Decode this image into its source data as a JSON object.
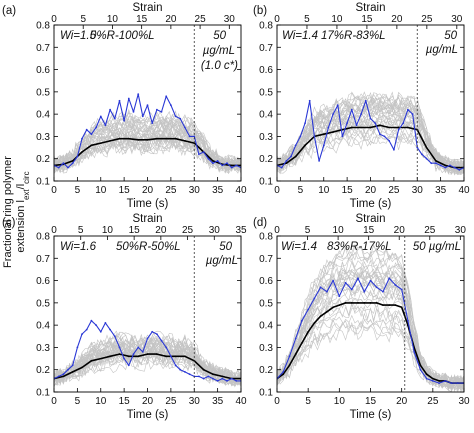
{
  "figure": {
    "ylabel_line1": "Fractional ring polymer",
    "ylabel_line2": "extension l",
    "ylabel_sub1": "ext",
    "ylabel_slash": "/l",
    "ylabel_sub2": "circ"
  },
  "chart_data": [
    {
      "type": "line",
      "panel_label": "(a)",
      "xlabel": "Time (s)",
      "x2label": "Strain",
      "xlim": [
        0,
        40
      ],
      "ylim": [
        0.1,
        0.8
      ],
      "xticks": [
        0,
        5,
        10,
        15,
        20,
        25,
        30,
        35,
        40
      ],
      "yticks": [
        0.1,
        0.2,
        0.3,
        0.4,
        0.5,
        0.6,
        0.7,
        0.8
      ],
      "x2ticks": [
        0,
        5,
        10,
        15,
        20,
        25,
        30
      ],
      "x2_per_time": 0.8,
      "vline": 30,
      "annotations": [
        "Wi=1.5",
        "0%R-100%L",
        "50",
        "µg/mL",
        "(1.0 c*)"
      ],
      "series": [
        {
          "role": "average",
          "color": "#000000",
          "x": [
            0,
            2,
            4,
            6,
            8,
            10,
            12,
            14,
            16,
            18,
            20,
            22,
            24,
            26,
            28,
            30,
            32,
            34,
            36,
            38,
            40
          ],
          "values": [
            0.17,
            0.175,
            0.19,
            0.23,
            0.26,
            0.27,
            0.28,
            0.29,
            0.29,
            0.285,
            0.285,
            0.29,
            0.29,
            0.29,
            0.28,
            0.27,
            0.23,
            0.19,
            0.175,
            0.17,
            0.17
          ]
        },
        {
          "role": "single molecule",
          "color": "#2a38d6",
          "x": [
            0,
            1,
            2,
            3,
            4,
            5,
            6,
            7,
            8,
            9,
            10,
            11,
            12,
            13,
            14,
            15,
            16,
            17,
            18,
            19,
            20,
            21,
            22,
            23,
            24,
            25,
            26,
            27,
            28,
            29,
            30,
            31,
            32,
            33,
            34,
            35,
            36,
            37,
            38,
            39,
            40
          ],
          "values": [
            0.17,
            0.16,
            0.18,
            0.16,
            0.18,
            0.21,
            0.29,
            0.33,
            0.31,
            0.34,
            0.39,
            0.35,
            0.42,
            0.38,
            0.46,
            0.37,
            0.47,
            0.41,
            0.49,
            0.39,
            0.44,
            0.36,
            0.42,
            0.41,
            0.48,
            0.44,
            0.39,
            0.38,
            0.34,
            0.3,
            0.3,
            0.22,
            0.23,
            0.2,
            0.18,
            0.19,
            0.17,
            0.18,
            0.16,
            0.17,
            0.16
          ]
        }
      ]
    },
    {
      "type": "line",
      "panel_label": "(b)",
      "xlabel": "Time (s)",
      "x2label": "Strain",
      "xlim": [
        0,
        40
      ],
      "ylim": [
        0.1,
        0.8
      ],
      "xticks": [
        0,
        5,
        10,
        15,
        20,
        25,
        30,
        35,
        40
      ],
      "yticks": [
        0.1,
        0.2,
        0.3,
        0.4,
        0.5,
        0.6,
        0.7,
        0.8
      ],
      "x2ticks": [
        0,
        5,
        10,
        15,
        20,
        25,
        30
      ],
      "x2_per_time": 0.78,
      "vline": 30,
      "annotations": [
        "Wi=1.4",
        "17%R-83%L",
        "50",
        "µg/mL"
      ],
      "series": [
        {
          "role": "average",
          "color": "#000000",
          "x": [
            0,
            2,
            4,
            6,
            8,
            10,
            12,
            14,
            16,
            18,
            20,
            22,
            24,
            26,
            28,
            30,
            32,
            34,
            36,
            38,
            40
          ],
          "values": [
            0.17,
            0.18,
            0.21,
            0.26,
            0.3,
            0.31,
            0.32,
            0.33,
            0.34,
            0.34,
            0.34,
            0.35,
            0.34,
            0.34,
            0.34,
            0.33,
            0.25,
            0.19,
            0.17,
            0.16,
            0.16
          ]
        },
        {
          "role": "single molecule",
          "color": "#2a38d6",
          "x": [
            0,
            1,
            2,
            3,
            4,
            5,
            6,
            7,
            8,
            9,
            10,
            11,
            12,
            13,
            14,
            15,
            16,
            17,
            18,
            19,
            20,
            21,
            22,
            23,
            24,
            25,
            26,
            27,
            28,
            29,
            30,
            31,
            32,
            33,
            34,
            35,
            36,
            37,
            38,
            39,
            40
          ],
          "values": [
            0.17,
            0.16,
            0.19,
            0.21,
            0.26,
            0.3,
            0.36,
            0.46,
            0.3,
            0.19,
            0.26,
            0.34,
            0.4,
            0.44,
            0.3,
            0.36,
            0.42,
            0.35,
            0.4,
            0.46,
            0.38,
            0.36,
            0.31,
            0.3,
            0.28,
            0.24,
            0.33,
            0.36,
            0.42,
            0.4,
            0.25,
            0.22,
            0.2,
            0.18,
            0.18,
            0.17,
            0.16,
            0.17,
            0.16,
            0.15,
            0.16
          ]
        }
      ]
    },
    {
      "type": "line",
      "panel_label": "(c)",
      "xlabel": "Time (s)",
      "x2label": "Strain",
      "xlim": [
        0,
        40
      ],
      "ylim": [
        0.1,
        0.8
      ],
      "xticks": [
        0,
        5,
        10,
        15,
        20,
        25,
        30,
        35,
        40
      ],
      "yticks": [
        0.1,
        0.2,
        0.3,
        0.4,
        0.5,
        0.6,
        0.7,
        0.8
      ],
      "x2ticks": [
        0,
        5,
        10,
        15,
        20,
        25,
        30,
        35
      ],
      "x2_per_time": 0.875,
      "vline": 30,
      "annotations": [
        "Wi=1.6",
        "50%R-50%L",
        "50",
        "µg/mL"
      ],
      "series": [
        {
          "role": "average",
          "color": "#000000",
          "x": [
            0,
            2,
            4,
            6,
            8,
            10,
            12,
            14,
            16,
            18,
            20,
            22,
            24,
            26,
            28,
            30,
            32,
            34,
            36,
            38,
            40
          ],
          "values": [
            0.16,
            0.17,
            0.19,
            0.21,
            0.24,
            0.25,
            0.26,
            0.27,
            0.26,
            0.26,
            0.27,
            0.27,
            0.26,
            0.26,
            0.26,
            0.24,
            0.2,
            0.18,
            0.17,
            0.16,
            0.16
          ]
        },
        {
          "role": "single molecule",
          "color": "#2a38d6",
          "x": [
            0,
            1,
            2,
            3,
            4,
            5,
            6,
            7,
            8,
            9,
            10,
            11,
            12,
            13,
            14,
            15,
            16,
            17,
            18,
            19,
            20,
            21,
            22,
            23,
            24,
            25,
            26,
            27,
            28,
            29,
            30,
            31,
            32,
            33,
            34,
            35,
            36,
            37,
            38,
            39,
            40
          ],
          "values": [
            0.16,
            0.17,
            0.18,
            0.2,
            0.22,
            0.3,
            0.36,
            0.38,
            0.42,
            0.4,
            0.37,
            0.41,
            0.38,
            0.35,
            0.3,
            0.25,
            0.22,
            0.27,
            0.3,
            0.28,
            0.34,
            0.37,
            0.36,
            0.33,
            0.3,
            0.26,
            0.22,
            0.2,
            0.19,
            0.18,
            0.17,
            0.17,
            0.16,
            0.17,
            0.16,
            0.15,
            0.16,
            0.15,
            0.16,
            0.15,
            0.15
          ]
        }
      ]
    },
    {
      "type": "line",
      "panel_label": "(d)",
      "xlabel": "Time (s)",
      "x2label": "Strain",
      "xlim": [
        0,
        30
      ],
      "ylim": [
        0.1,
        0.8
      ],
      "xticks": [
        0,
        5,
        10,
        15,
        20,
        25,
        30
      ],
      "yticks": [
        0.1,
        0.2,
        0.3,
        0.4,
        0.5,
        0.6,
        0.7,
        0.8
      ],
      "x2ticks": [
        0,
        5,
        10,
        15,
        20,
        25,
        30
      ],
      "x2_per_time": 1.02,
      "vline": 20.5,
      "annotations": [
        "Wi=1.4",
        "83%R-17%L",
        "50 µg/mL"
      ],
      "series": [
        {
          "role": "average",
          "color": "#000000",
          "x": [
            0,
            1,
            2,
            3,
            4,
            5,
            6,
            7,
            8,
            9,
            10,
            11,
            12,
            13,
            14,
            15,
            16,
            17,
            18,
            19,
            20,
            21,
            22,
            23,
            24,
            25,
            26,
            27,
            28,
            29,
            30
          ],
          "values": [
            0.16,
            0.18,
            0.22,
            0.27,
            0.32,
            0.37,
            0.41,
            0.44,
            0.46,
            0.48,
            0.49,
            0.5,
            0.5,
            0.5,
            0.5,
            0.5,
            0.5,
            0.49,
            0.49,
            0.49,
            0.48,
            0.4,
            0.3,
            0.22,
            0.18,
            0.16,
            0.15,
            0.15,
            0.14,
            0.14,
            0.14
          ]
        },
        {
          "role": "single molecule",
          "color": "#2a38d6",
          "x": [
            0,
            1,
            2,
            3,
            4,
            5,
            6,
            7,
            8,
            9,
            10,
            11,
            12,
            13,
            14,
            15,
            16,
            17,
            18,
            19,
            20,
            21,
            22,
            23,
            24,
            25,
            26,
            27,
            28,
            29,
            30
          ],
          "values": [
            0.16,
            0.19,
            0.26,
            0.34,
            0.42,
            0.47,
            0.52,
            0.57,
            0.55,
            0.6,
            0.53,
            0.59,
            0.56,
            0.61,
            0.55,
            0.6,
            0.57,
            0.55,
            0.61,
            0.58,
            0.56,
            0.42,
            0.28,
            0.2,
            0.16,
            0.15,
            0.14,
            0.15,
            0.14,
            0.14,
            0.14
          ]
        }
      ]
    }
  ]
}
